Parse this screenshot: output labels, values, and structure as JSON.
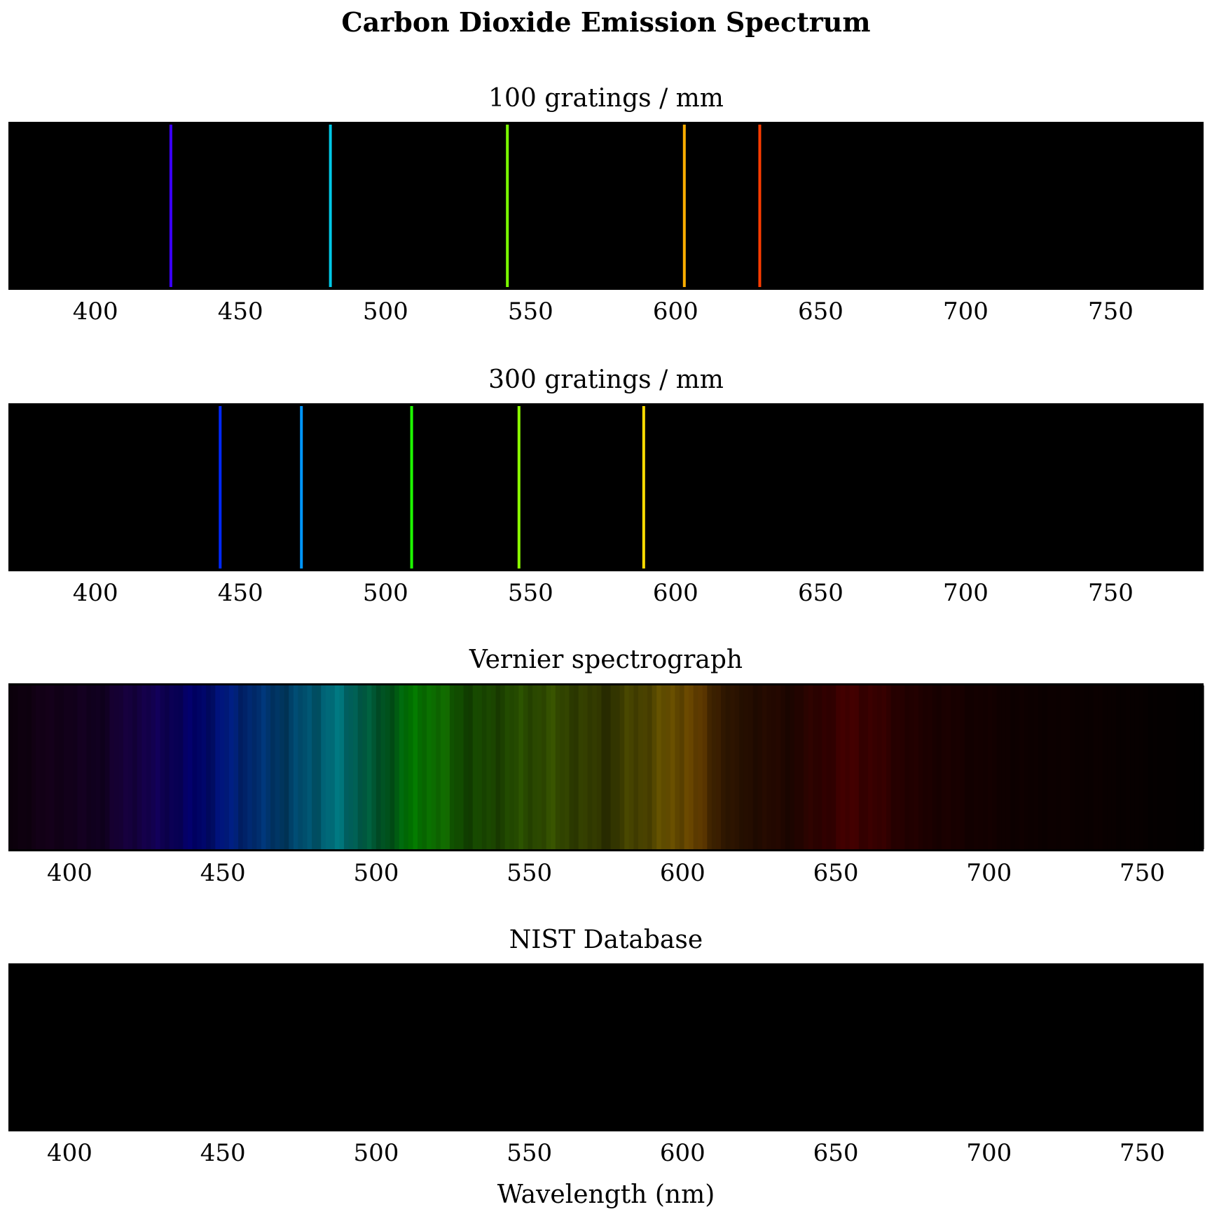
{
  "chart_data": {
    "title": "Carbon Dioxide Emission Spectrum",
    "xlabel": "Wavelength (nm)",
    "panels": [
      {
        "type": "emission-lines",
        "subtitle": "100 gratings / mm",
        "xlim": [
          370,
          782
        ],
        "ticks": [
          400,
          450,
          500,
          550,
          600,
          650,
          700,
          750
        ],
        "lines": [
          {
            "wavelength": 426,
            "color": "#3b00ff"
          },
          {
            "wavelength": 481,
            "color": "#00c8e6"
          },
          {
            "wavelength": 542,
            "color": "#7cff00"
          },
          {
            "wavelength": 603,
            "color": "#ffae00"
          },
          {
            "wavelength": 629,
            "color": "#ff3c00"
          }
        ]
      },
      {
        "type": "emission-lines",
        "subtitle": "300 gratings / mm",
        "xlim": [
          370,
          782
        ],
        "ticks": [
          400,
          450,
          500,
          550,
          600,
          650,
          700,
          750
        ],
        "lines": [
          {
            "wavelength": 443,
            "color": "#0028ff"
          },
          {
            "wavelength": 471,
            "color": "#0096ff"
          },
          {
            "wavelength": 509,
            "color": "#1eff00"
          },
          {
            "wavelength": 546,
            "color": "#8cff00"
          },
          {
            "wavelength": 589,
            "color": "#ffdc00"
          }
        ]
      },
      {
        "type": "continuous",
        "subtitle": "Vernier spectrograph",
        "xlim": [
          380,
          770
        ],
        "ticks": [
          400,
          450,
          500,
          550,
          600,
          650,
          700,
          750
        ],
        "intensity_stops": [
          {
            "wavelength": 380,
            "intensity": 0.05
          },
          {
            "wavelength": 390,
            "intensity": 0.1
          },
          {
            "wavelength": 410,
            "intensity": 0.15
          },
          {
            "wavelength": 420,
            "intensity": 0.3
          },
          {
            "wavelength": 440,
            "intensity": 0.45
          },
          {
            "wavelength": 450,
            "intensity": 0.55
          },
          {
            "wavelength": 470,
            "intensity": 0.45
          },
          {
            "wavelength": 485,
            "intensity": 0.55
          },
          {
            "wavelength": 500,
            "intensity": 0.35
          },
          {
            "wavelength": 515,
            "intensity": 0.55
          },
          {
            "wavelength": 530,
            "intensity": 0.3
          },
          {
            "wavelength": 555,
            "intensity": 0.35
          },
          {
            "wavelength": 575,
            "intensity": 0.22
          },
          {
            "wavelength": 600,
            "intensity": 0.5
          },
          {
            "wavelength": 615,
            "intensity": 0.18
          },
          {
            "wavelength": 635,
            "intensity": 0.14
          },
          {
            "wavelength": 655,
            "intensity": 0.3
          },
          {
            "wavelength": 675,
            "intensity": 0.14
          },
          {
            "wavelength": 690,
            "intensity": 0.1
          },
          {
            "wavelength": 710,
            "intensity": 0.06
          },
          {
            "wavelength": 740,
            "intensity": 0.04
          },
          {
            "wavelength": 770,
            "intensity": 0.0
          }
        ]
      },
      {
        "type": "emission-lines",
        "subtitle": "NIST Database",
        "xlim": [
          380,
          770
        ],
        "ticks": [
          400,
          450,
          500,
          550,
          600,
          650,
          700,
          750
        ],
        "lines": []
      }
    ]
  }
}
